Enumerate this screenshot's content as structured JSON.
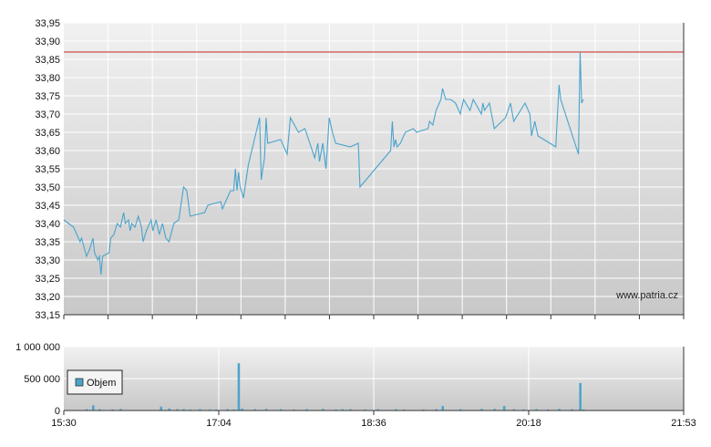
{
  "watermark": "www.patria.cz",
  "colors": {
    "line": "#4aa3cc",
    "reference": "#cc2222",
    "grid": "#ffffff",
    "bar": "#4aa3cc",
    "axis_text": "#111111"
  },
  "chart_data": [
    {
      "type": "line",
      "title": "",
      "xlabel": "",
      "ylabel": "",
      "grid": true,
      "x_ticks": [
        "15:30",
        "17:04",
        "18:36",
        "20:18",
        "21:53"
      ],
      "y_ticks": [
        "33,15",
        "33,20",
        "33,25",
        "33,30",
        "33,35",
        "33,40",
        "33,45",
        "33,50",
        "33,55",
        "33,60",
        "33,65",
        "33,70",
        "33,75",
        "33,80",
        "33,85",
        "33,90",
        "33,95"
      ],
      "ylim": [
        33.15,
        33.95
      ],
      "xlim": [
        "15:30",
        "21:53"
      ],
      "reference_line": 33.87,
      "series": [
        {
          "points": [
            [
              "15:30",
              33.41
            ],
            [
              "15:36",
              33.39
            ],
            [
              "15:40",
              33.35
            ],
            [
              "15:41",
              33.36
            ],
            [
              "15:44",
              33.31
            ],
            [
              "15:46",
              33.33
            ],
            [
              "15:48",
              33.36
            ],
            [
              "15:49",
              33.32
            ],
            [
              "15:51",
              33.3
            ],
            [
              "15:52",
              33.31
            ],
            [
              "15:53",
              33.26
            ],
            [
              "15:54",
              33.31
            ],
            [
              "15:58",
              33.32
            ],
            [
              "15:59",
              33.36
            ],
            [
              "16:01",
              33.37
            ],
            [
              "16:03",
              33.4
            ],
            [
              "16:05",
              33.39
            ],
            [
              "16:07",
              33.43
            ],
            [
              "16:08",
              33.4
            ],
            [
              "16:10",
              33.41
            ],
            [
              "16:11",
              33.38
            ],
            [
              "16:12",
              33.4
            ],
            [
              "16:14",
              33.39
            ],
            [
              "16:16",
              33.42
            ],
            [
              "16:18",
              33.39
            ],
            [
              "16:19",
              33.35
            ],
            [
              "16:21",
              33.38
            ],
            [
              "16:24",
              33.41
            ],
            [
              "16:25",
              33.38
            ],
            [
              "16:27",
              33.41
            ],
            [
              "16:29",
              33.37
            ],
            [
              "16:31",
              33.4
            ],
            [
              "16:33",
              33.36
            ],
            [
              "16:35",
              33.35
            ],
            [
              "16:38",
              33.4
            ],
            [
              "16:41",
              33.41
            ],
            [
              "16:44",
              33.5
            ],
            [
              "16:46",
              33.49
            ],
            [
              "16:48",
              33.42
            ],
            [
              "16:57",
              33.43
            ],
            [
              "16:59",
              33.45
            ],
            [
              "17:07",
              33.46
            ],
            [
              "17:08",
              33.44
            ],
            [
              "17:11",
              33.47
            ],
            [
              "17:13",
              33.49
            ],
            [
              "17:15",
              33.49
            ],
            [
              "17:16",
              33.55
            ],
            [
              "17:17",
              33.49
            ],
            [
              "17:18",
              33.54
            ],
            [
              "17:19",
              33.5
            ],
            [
              "17:21",
              33.47
            ],
            [
              "17:24",
              33.56
            ],
            [
              "17:31",
              33.69
            ],
            [
              "17:32",
              33.52
            ],
            [
              "17:34",
              33.58
            ],
            [
              "17:35",
              33.69
            ],
            [
              "17:36",
              33.62
            ],
            [
              "17:44",
              33.63
            ],
            [
              "17:48",
              33.59
            ],
            [
              "17:50",
              33.69
            ],
            [
              "17:55",
              33.65
            ],
            [
              "17:59",
              33.66
            ],
            [
              "18:02",
              33.62
            ],
            [
              "18:05",
              33.58
            ],
            [
              "18:07",
              33.62
            ],
            [
              "18:08",
              33.57
            ],
            [
              "18:10",
              33.62
            ],
            [
              "18:12",
              33.55
            ],
            [
              "18:14",
              33.69
            ],
            [
              "18:16",
              33.65
            ],
            [
              "18:18",
              33.62
            ],
            [
              "18:27",
              33.61
            ],
            [
              "18:32",
              33.62
            ],
            [
              "18:33",
              33.5
            ],
            [
              "18:52",
              33.6
            ],
            [
              "18:53",
              33.68
            ],
            [
              "18:54",
              33.61
            ],
            [
              "18:55",
              33.63
            ],
            [
              "18:56",
              33.61
            ],
            [
              "18:58",
              33.62
            ],
            [
              "19:01",
              33.65
            ],
            [
              "19:06",
              33.66
            ],
            [
              "19:08",
              33.65
            ],
            [
              "19:15",
              33.66
            ],
            [
              "19:16",
              33.68
            ],
            [
              "19:18",
              33.67
            ],
            [
              "19:20",
              33.71
            ],
            [
              "19:23",
              33.74
            ],
            [
              "19:24",
              33.77
            ],
            [
              "19:26",
              33.74
            ],
            [
              "19:29",
              33.74
            ],
            [
              "19:32",
              33.73
            ],
            [
              "19:35",
              33.7
            ],
            [
              "19:37",
              33.74
            ],
            [
              "19:41",
              33.71
            ],
            [
              "19:43",
              33.74
            ],
            [
              "19:48",
              33.7
            ],
            [
              "19:49",
              33.73
            ],
            [
              "19:50",
              33.71
            ],
            [
              "19:53",
              33.73
            ],
            [
              "19:56",
              33.66
            ],
            [
              "20:03",
              33.69
            ],
            [
              "20:06",
              33.73
            ],
            [
              "20:08",
              33.68
            ],
            [
              "20:15",
              33.73
            ],
            [
              "20:18",
              33.7
            ],
            [
              "20:19",
              33.64
            ],
            [
              "20:21",
              33.68
            ],
            [
              "20:23",
              33.64
            ],
            [
              "20:34",
              33.61
            ],
            [
              "20:36",
              33.78
            ],
            [
              "20:37",
              33.74
            ],
            [
              "20:48",
              33.59
            ],
            [
              "20:49",
              33.87
            ],
            [
              "20:50",
              33.73
            ],
            [
              "20:51",
              33.74
            ]
          ]
        }
      ]
    },
    {
      "type": "bar",
      "title": "",
      "xlabel": "",
      "ylabel": "",
      "grid": true,
      "legend": "top-left",
      "x_ticks": [
        "15:30",
        "17:04",
        "18:36",
        "20:18",
        "21:53"
      ],
      "y_ticks": [
        "0",
        "500 000",
        "1 000 000"
      ],
      "ylim": [
        0,
        1000000
      ],
      "series": [
        {
          "name": "Objem",
          "points": [
            [
              "15:44",
              20000
            ],
            [
              "15:48",
              80000
            ],
            [
              "15:52",
              20000
            ],
            [
              "16:00",
              15000
            ],
            [
              "16:05",
              25000
            ],
            [
              "16:30",
              60000
            ],
            [
              "16:35",
              30000
            ],
            [
              "16:40",
              20000
            ],
            [
              "16:44",
              20000
            ],
            [
              "16:48",
              15000
            ],
            [
              "16:54",
              20000
            ],
            [
              "17:00",
              15000
            ],
            [
              "17:04",
              15000
            ],
            [
              "17:11",
              20000
            ],
            [
              "17:15",
              15000
            ],
            [
              "17:18",
              740000
            ],
            [
              "17:20",
              30000
            ],
            [
              "17:28",
              20000
            ],
            [
              "17:35",
              25000
            ],
            [
              "17:44",
              20000
            ],
            [
              "17:52",
              15000
            ],
            [
              "18:00",
              20000
            ],
            [
              "18:10",
              25000
            ],
            [
              "18:18",
              15000
            ],
            [
              "18:22",
              20000
            ],
            [
              "18:27",
              20000
            ],
            [
              "18:36",
              15000
            ],
            [
              "18:44",
              20000
            ],
            [
              "18:55",
              20000
            ],
            [
              "19:00",
              15000
            ],
            [
              "19:12",
              15000
            ],
            [
              "19:20",
              20000
            ],
            [
              "19:24",
              70000
            ],
            [
              "19:35",
              20000
            ],
            [
              "19:48",
              25000
            ],
            [
              "19:56",
              25000
            ],
            [
              "20:02",
              70000
            ],
            [
              "20:08",
              20000
            ],
            [
              "20:14",
              15000
            ],
            [
              "20:22",
              20000
            ],
            [
              "20:29",
              15000
            ],
            [
              "20:36",
              25000
            ],
            [
              "20:44",
              20000
            ],
            [
              "20:49",
              430000
            ],
            [
              "20:51",
              15000
            ]
          ]
        }
      ]
    }
  ]
}
